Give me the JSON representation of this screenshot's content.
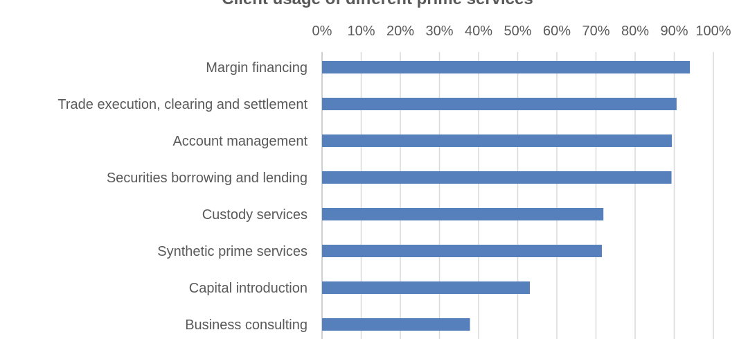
{
  "chart_data": {
    "type": "bar",
    "orientation": "horizontal",
    "title": "Client usage of different prime services",
    "xlabel": "",
    "ylabel": "",
    "xlim": [
      0,
      100
    ],
    "xticks": [
      "0%",
      "10%",
      "20%",
      "30%",
      "40%",
      "50%",
      "60%",
      "70%",
      "80%",
      "90%",
      "100%"
    ],
    "grid": true,
    "categories": [
      "Margin financing",
      "Trade execution, clearing and settlement",
      "Account management",
      "Securities borrowing and lending",
      "Custody services",
      "Synthetic prime services",
      "Capital introduction",
      "Business consulting"
    ],
    "values": [
      94,
      90.6,
      89.4,
      89.3,
      71.9,
      71.5,
      53.1,
      37.8
    ],
    "unit": "%",
    "bar_color": "#5580BC",
    "grid_color": "#D9D9D9"
  }
}
